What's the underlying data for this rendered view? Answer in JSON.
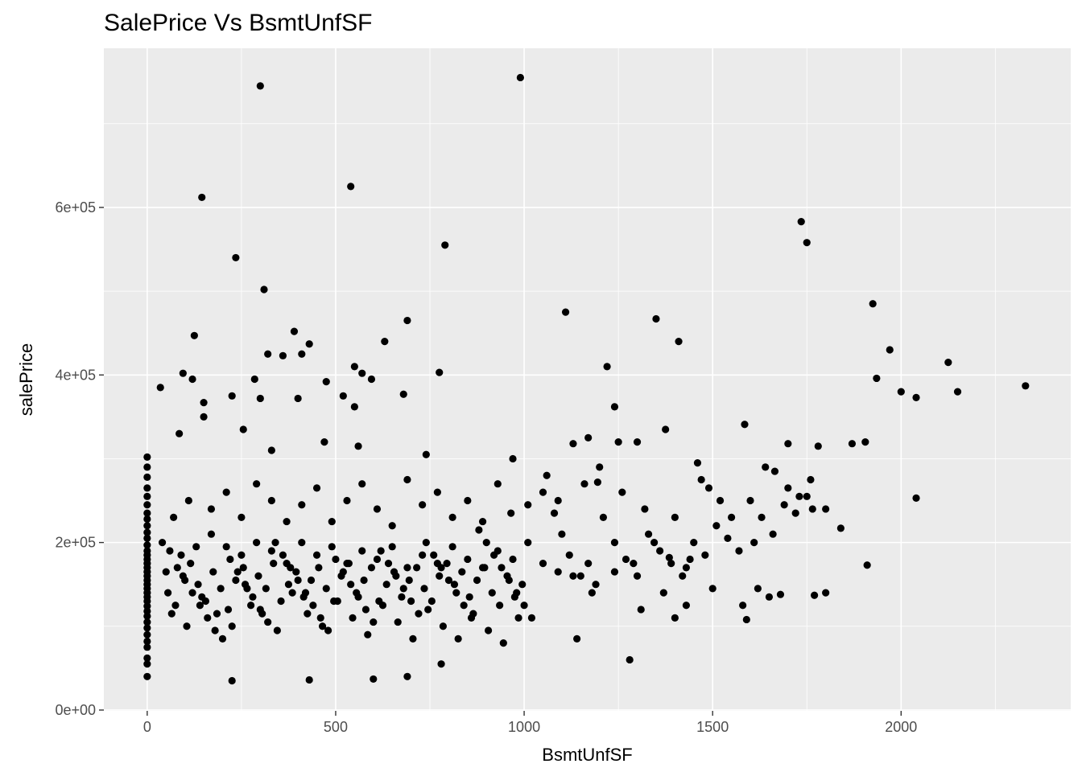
{
  "chart_data": {
    "type": "scatter",
    "title": "SalePrice Vs BsmtUnfSF",
    "xlabel": "BsmtUnfSF",
    "ylabel": "salePrice",
    "xlim": [
      -115,
      2450
    ],
    "ylim": [
      -1000,
      790000
    ],
    "x_ticks": [
      0,
      500,
      1000,
      1500,
      2000
    ],
    "x_tick_labels": [
      "0",
      "500",
      "1000",
      "1500",
      "2000"
    ],
    "y_ticks": [
      0,
      200000,
      400000,
      600000
    ],
    "y_tick_labels": [
      "0e+00",
      "2e+05",
      "4e+05",
      "6e+05"
    ],
    "grid": true,
    "point_color": "#000000",
    "panel_color": "#ebebeb",
    "grid_color": "#ffffff",
    "points": [
      [
        0,
        40000
      ],
      [
        0,
        55000
      ],
      [
        0,
        62000
      ],
      [
        0,
        75000
      ],
      [
        0,
        82000
      ],
      [
        0,
        90000
      ],
      [
        0,
        98000
      ],
      [
        0,
        105000
      ],
      [
        0,
        112000
      ],
      [
        0,
        118000
      ],
      [
        0,
        124000
      ],
      [
        0,
        130000
      ],
      [
        0,
        135000
      ],
      [
        0,
        140000
      ],
      [
        0,
        145000
      ],
      [
        0,
        150000
      ],
      [
        0,
        155000
      ],
      [
        0,
        160000
      ],
      [
        0,
        165000
      ],
      [
        0,
        170000
      ],
      [
        0,
        175000
      ],
      [
        0,
        180000
      ],
      [
        0,
        185000
      ],
      [
        0,
        190000
      ],
      [
        0,
        197000
      ],
      [
        0,
        205000
      ],
      [
        0,
        212000
      ],
      [
        0,
        220000
      ],
      [
        0,
        228000
      ],
      [
        0,
        235000
      ],
      [
        0,
        245000
      ],
      [
        0,
        255000
      ],
      [
        0,
        265000
      ],
      [
        0,
        278000
      ],
      [
        0,
        290000
      ],
      [
        0,
        302000
      ],
      [
        300,
        745000
      ],
      [
        990,
        755000
      ],
      [
        145,
        612000
      ],
      [
        540,
        625000
      ],
      [
        1735,
        583000
      ],
      [
        1750,
        558000
      ],
      [
        790,
        555000
      ],
      [
        235,
        540000
      ],
      [
        310,
        502000
      ],
      [
        1110,
        475000
      ],
      [
        1925,
        485000
      ],
      [
        1350,
        467000
      ],
      [
        690,
        465000
      ],
      [
        390,
        452000
      ],
      [
        125,
        447000
      ],
      [
        1410,
        440000
      ],
      [
        630,
        440000
      ],
      [
        1970,
        430000
      ],
      [
        2125,
        415000
      ],
      [
        1220,
        410000
      ],
      [
        2330,
        387000
      ],
      [
        1935,
        396000
      ],
      [
        2000,
        380000
      ],
      [
        2150,
        380000
      ],
      [
        2040,
        373000
      ],
      [
        775,
        403000
      ],
      [
        320,
        425000
      ],
      [
        410,
        425000
      ],
      [
        550,
        410000
      ],
      [
        360,
        423000
      ],
      [
        430,
        437000
      ],
      [
        570,
        402000
      ],
      [
        595,
        395000
      ],
      [
        95,
        402000
      ],
      [
        120,
        395000
      ],
      [
        285,
        395000
      ],
      [
        475,
        392000
      ],
      [
        35,
        385000
      ],
      [
        225,
        375000
      ],
      [
        300,
        372000
      ],
      [
        400,
        372000
      ],
      [
        520,
        375000
      ],
      [
        680,
        377000
      ],
      [
        150,
        367000
      ],
      [
        550,
        362000
      ],
      [
        1240,
        362000
      ],
      [
        1585,
        341000
      ],
      [
        1375,
        335000
      ],
      [
        2040,
        253000
      ],
      [
        1910,
        173000
      ],
      [
        1280,
        60000
      ],
      [
        430,
        36000
      ],
      [
        225,
        35000
      ],
      [
        600,
        37000
      ],
      [
        690,
        40000
      ],
      [
        780,
        55000
      ],
      [
        1140,
        85000
      ],
      [
        1590,
        108000
      ],
      [
        1770,
        137000
      ],
      [
        1800,
        140000
      ],
      [
        1840,
        217000
      ],
      [
        1870,
        318000
      ],
      [
        1905,
        320000
      ],
      [
        1700,
        318000
      ],
      [
        1780,
        315000
      ],
      [
        85,
        330000
      ],
      [
        150,
        350000
      ],
      [
        255,
        335000
      ],
      [
        330,
        310000
      ],
      [
        470,
        320000
      ],
      [
        560,
        315000
      ],
      [
        740,
        305000
      ],
      [
        970,
        300000
      ],
      [
        1130,
        318000
      ],
      [
        1300,
        320000
      ],
      [
        1640,
        290000
      ],
      [
        1760,
        275000
      ],
      [
        40,
        200000
      ],
      [
        60,
        190000
      ],
      [
        80,
        170000
      ],
      [
        100,
        155000
      ],
      [
        120,
        140000
      ],
      [
        140,
        125000
      ],
      [
        160,
        110000
      ],
      [
        180,
        95000
      ],
      [
        200,
        85000
      ],
      [
        220,
        180000
      ],
      [
        240,
        165000
      ],
      [
        260,
        150000
      ],
      [
        280,
        135000
      ],
      [
        300,
        120000
      ],
      [
        320,
        105000
      ],
      [
        340,
        200000
      ],
      [
        360,
        185000
      ],
      [
        380,
        170000
      ],
      [
        400,
        155000
      ],
      [
        420,
        140000
      ],
      [
        440,
        125000
      ],
      [
        460,
        110000
      ],
      [
        480,
        95000
      ],
      [
        500,
        180000
      ],
      [
        520,
        165000
      ],
      [
        540,
        150000
      ],
      [
        560,
        135000
      ],
      [
        580,
        120000
      ],
      [
        600,
        105000
      ],
      [
        620,
        190000
      ],
      [
        640,
        175000
      ],
      [
        660,
        160000
      ],
      [
        680,
        145000
      ],
      [
        700,
        130000
      ],
      [
        720,
        115000
      ],
      [
        740,
        200000
      ],
      [
        760,
        185000
      ],
      [
        780,
        170000
      ],
      [
        800,
        155000
      ],
      [
        820,
        140000
      ],
      [
        840,
        125000
      ],
      [
        860,
        110000
      ],
      [
        880,
        215000
      ],
      [
        900,
        200000
      ],
      [
        920,
        185000
      ],
      [
        940,
        170000
      ],
      [
        960,
        155000
      ],
      [
        980,
        140000
      ],
      [
        1000,
        125000
      ],
      [
        1020,
        110000
      ],
      [
        1050,
        260000
      ],
      [
        1080,
        235000
      ],
      [
        1100,
        210000
      ],
      [
        1120,
        185000
      ],
      [
        1150,
        160000
      ],
      [
        1180,
        140000
      ],
      [
        1210,
        230000
      ],
      [
        1240,
        200000
      ],
      [
        1270,
        180000
      ],
      [
        1300,
        160000
      ],
      [
        1330,
        210000
      ],
      [
        1360,
        190000
      ],
      [
        1390,
        175000
      ],
      [
        1420,
        160000
      ],
      [
        1450,
        200000
      ],
      [
        1480,
        185000
      ],
      [
        1510,
        220000
      ],
      [
        1540,
        205000
      ],
      [
        1570,
        190000
      ],
      [
        1600,
        250000
      ],
      [
        1630,
        230000
      ],
      [
        1660,
        210000
      ],
      [
        1690,
        245000
      ],
      [
        1720,
        235000
      ],
      [
        1750,
        255000
      ],
      [
        70,
        230000
      ],
      [
        110,
        250000
      ],
      [
        170,
        240000
      ],
      [
        210,
        260000
      ],
      [
        250,
        230000
      ],
      [
        290,
        270000
      ],
      [
        330,
        250000
      ],
      [
        370,
        225000
      ],
      [
        410,
        245000
      ],
      [
        450,
        265000
      ],
      [
        490,
        225000
      ],
      [
        530,
        250000
      ],
      [
        570,
        270000
      ],
      [
        610,
        240000
      ],
      [
        650,
        220000
      ],
      [
        690,
        275000
      ],
      [
        730,
        245000
      ],
      [
        770,
        260000
      ],
      [
        810,
        230000
      ],
      [
        850,
        250000
      ],
      [
        890,
        225000
      ],
      [
        930,
        270000
      ],
      [
        965,
        235000
      ],
      [
        1010,
        245000
      ],
      [
        1060,
        280000
      ],
      [
        1090,
        250000
      ],
      [
        1160,
        270000
      ],
      [
        1200,
        290000
      ],
      [
        1260,
        260000
      ],
      [
        1320,
        240000
      ],
      [
        55,
        140000
      ],
      [
        75,
        125000
      ],
      [
        95,
        160000
      ],
      [
        115,
        175000
      ],
      [
        135,
        150000
      ],
      [
        155,
        130000
      ],
      [
        175,
        165000
      ],
      [
        195,
        145000
      ],
      [
        215,
        120000
      ],
      [
        235,
        155000
      ],
      [
        255,
        170000
      ],
      [
        275,
        125000
      ],
      [
        295,
        160000
      ],
      [
        315,
        145000
      ],
      [
        335,
        175000
      ],
      [
        355,
        130000
      ],
      [
        375,
        150000
      ],
      [
        395,
        165000
      ],
      [
        415,
        135000
      ],
      [
        435,
        155000
      ],
      [
        455,
        170000
      ],
      [
        475,
        145000
      ],
      [
        495,
        130000
      ],
      [
        515,
        160000
      ],
      [
        535,
        175000
      ],
      [
        555,
        140000
      ],
      [
        575,
        155000
      ],
      [
        595,
        170000
      ],
      [
        615,
        130000
      ],
      [
        635,
        150000
      ],
      [
        655,
        165000
      ],
      [
        675,
        135000
      ],
      [
        695,
        155000
      ],
      [
        715,
        170000
      ],
      [
        735,
        145000
      ],
      [
        755,
        130000
      ],
      [
        775,
        160000
      ],
      [
        795,
        175000
      ],
      [
        815,
        150000
      ],
      [
        835,
        165000
      ],
      [
        855,
        135000
      ],
      [
        875,
        155000
      ],
      [
        895,
        170000
      ],
      [
        915,
        140000
      ],
      [
        935,
        125000
      ],
      [
        955,
        160000
      ],
      [
        975,
        135000
      ],
      [
        995,
        150000
      ],
      [
        65,
        115000
      ],
      [
        105,
        100000
      ],
      [
        145,
        135000
      ],
      [
        185,
        115000
      ],
      [
        225,
        100000
      ],
      [
        265,
        145000
      ],
      [
        305,
        115000
      ],
      [
        345,
        95000
      ],
      [
        385,
        140000
      ],
      [
        425,
        115000
      ],
      [
        465,
        100000
      ],
      [
        505,
        130000
      ],
      [
        545,
        110000
      ],
      [
        585,
        90000
      ],
      [
        625,
        125000
      ],
      [
        665,
        105000
      ],
      [
        705,
        85000
      ],
      [
        745,
        120000
      ],
      [
        785,
        100000
      ],
      [
        825,
        85000
      ],
      [
        865,
        115000
      ],
      [
        905,
        95000
      ],
      [
        945,
        80000
      ],
      [
        985,
        110000
      ],
      [
        50,
        165000
      ],
      [
        90,
        185000
      ],
      [
        130,
        195000
      ],
      [
        170,
        210000
      ],
      [
        210,
        195000
      ],
      [
        250,
        185000
      ],
      [
        290,
        200000
      ],
      [
        330,
        190000
      ],
      [
        370,
        175000
      ],
      [
        410,
        200000
      ],
      [
        450,
        185000
      ],
      [
        490,
        195000
      ],
      [
        530,
        175000
      ],
      [
        570,
        190000
      ],
      [
        610,
        180000
      ],
      [
        650,
        195000
      ],
      [
        690,
        170000
      ],
      [
        730,
        185000
      ],
      [
        770,
        175000
      ],
      [
        810,
        195000
      ],
      [
        850,
        180000
      ],
      [
        890,
        170000
      ],
      [
        930,
        190000
      ],
      [
        970,
        180000
      ],
      [
        1010,
        200000
      ],
      [
        1050,
        175000
      ],
      [
        1090,
        165000
      ],
      [
        1130,
        160000
      ],
      [
        1170,
        175000
      ],
      [
        1190,
        150000
      ],
      [
        1240,
        165000
      ],
      [
        1290,
        175000
      ],
      [
        1310,
        120000
      ],
      [
        1370,
        140000
      ],
      [
        1400,
        110000
      ],
      [
        1430,
        125000
      ],
      [
        1500,
        145000
      ],
      [
        1580,
        125000
      ],
      [
        1620,
        145000
      ],
      [
        1650,
        135000
      ],
      [
        1680,
        138000
      ],
      [
        1460,
        295000
      ],
      [
        1470,
        275000
      ],
      [
        1490,
        265000
      ],
      [
        1520,
        250000
      ],
      [
        1550,
        230000
      ],
      [
        1610,
        200000
      ],
      [
        1665,
        285000
      ],
      [
        1700,
        265000
      ],
      [
        1730,
        255000
      ],
      [
        1765,
        240000
      ],
      [
        1800,
        240000
      ],
      [
        1400,
        230000
      ],
      [
        1430,
        170000
      ],
      [
        1345,
        200000
      ],
      [
        1385,
        182000
      ],
      [
        1440,
        180000
      ],
      [
        1250,
        320000
      ],
      [
        1195,
        272000
      ],
      [
        1170,
        325000
      ]
    ]
  }
}
